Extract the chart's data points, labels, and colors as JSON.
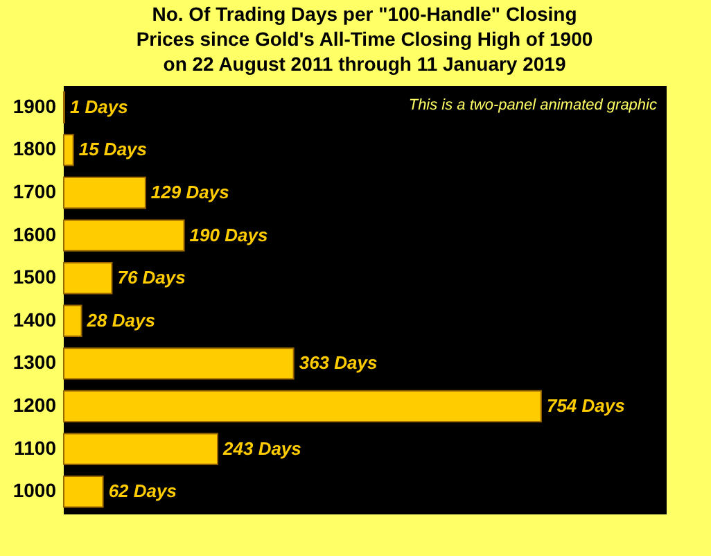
{
  "chart_data": {
    "type": "bar",
    "orientation": "horizontal",
    "title": "No. Of Trading Days per \"100-Handle\" Closing\nPrices  since Gold's All-Time Closing High of 1900\non 22 August 2011 through 11 January 2019",
    "categories": [
      "1900",
      "1800",
      "1700",
      "1600",
      "1500",
      "1400",
      "1300",
      "1200",
      "1100",
      "1000"
    ],
    "values": [
      1,
      15,
      129,
      190,
      76,
      28,
      363,
      754,
      243,
      62
    ],
    "value_labels": [
      "1 Days",
      "15 Days",
      "129 Days",
      "190 Days",
      "76 Days",
      "28 Days",
      "363 Days",
      "754 Days",
      "243 Days",
      "62 Days"
    ],
    "color": "#ffcc00",
    "xlim": [
      0,
      950
    ],
    "tick_labels": "y",
    "annotations": [
      "This is a two-panel animated graphic"
    ]
  }
}
